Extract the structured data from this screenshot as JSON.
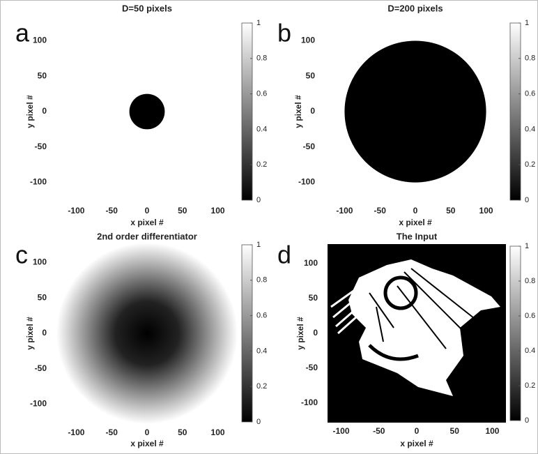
{
  "chart_data": [
    {
      "type": "image",
      "panel_label": "a",
      "title": "D=50 pixels",
      "xlabel": "x pixel #",
      "ylabel": "y pixel #",
      "xlim": [
        -128,
        128
      ],
      "ylim": [
        -128,
        128
      ],
      "xticks": [
        -100,
        -50,
        0,
        50,
        100
      ],
      "yticks": [
        -100,
        -50,
        0,
        50,
        100
      ],
      "clim": [
        0,
        1
      ],
      "cticks": [
        0,
        0.2,
        0.4,
        0.6,
        0.8,
        1
      ]
    },
    {
      "type": "image",
      "panel_label": "b",
      "title": "D=200 pixels",
      "xlabel": "x pixel #",
      "ylabel": "y pixel #",
      "xlim": [
        -128,
        128
      ],
      "ylim": [
        -128,
        128
      ],
      "xticks": [
        -100,
        -50,
        0,
        50,
        100
      ],
      "yticks": [
        -100,
        -50,
        0,
        50,
        100
      ],
      "clim": [
        0,
        1
      ],
      "cticks": [
        0,
        0.2,
        0.4,
        0.6,
        0.8,
        1
      ]
    },
    {
      "type": "image",
      "panel_label": "c",
      "title": "2nd order differentiator",
      "xlabel": "x pixel #",
      "ylabel": "y pixel #",
      "xlim": [
        -128,
        128
      ],
      "ylim": [
        -128,
        128
      ],
      "xticks": [
        -100,
        -50,
        0,
        50,
        100
      ],
      "yticks": [
        -100,
        -50,
        0,
        50,
        100
      ],
      "clim": [
        0,
        1
      ],
      "cticks": [
        0,
        0.2,
        0.4,
        0.6,
        0.8,
        1
      ]
    },
    {
      "type": "image",
      "panel_label": "d",
      "title": "The Input",
      "xlabel": "x pixel #",
      "ylabel": "y pixel #",
      "xlim": [
        -118,
        118
      ],
      "ylim": [
        -128,
        128
      ],
      "xticks": [
        -100,
        -50,
        0,
        50,
        100
      ],
      "yticks": [
        -100,
        -50,
        0,
        50,
        100
      ],
      "clim": [
        0,
        1
      ],
      "cticks": [
        0,
        0.2,
        0.4,
        0.6,
        0.8,
        1
      ]
    }
  ]
}
